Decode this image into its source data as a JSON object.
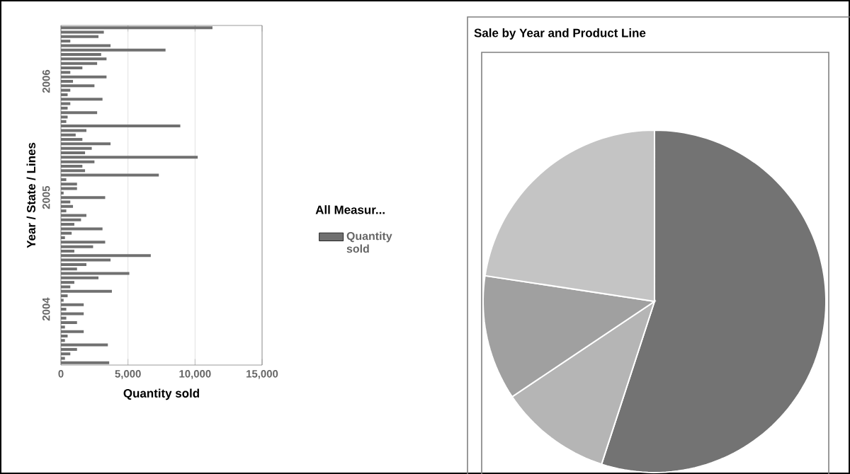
{
  "chart_data": [
    {
      "type": "bar",
      "orientation": "horizontal",
      "xlabel": "Quantity sold",
      "ylabel": "Year / State / Lines",
      "legend_title": "All Measur...",
      "legend": "right",
      "grid": "x",
      "categories": [
        null,
        null,
        null,
        null,
        null,
        null,
        null,
        null,
        null,
        null,
        null,
        null,
        "2006",
        null,
        null,
        null,
        null,
        null,
        null,
        null,
        null,
        null,
        null,
        null,
        null,
        null,
        null,
        null,
        null,
        null,
        null,
        null,
        null,
        null,
        null,
        null,
        null,
        null,
        "2005",
        null,
        null,
        null,
        null,
        null,
        null,
        null,
        null,
        null,
        null,
        null,
        null,
        null,
        null,
        null,
        null,
        null,
        null,
        null,
        null,
        null,
        null,
        null,
        null,
        "2004",
        null,
        null,
        null,
        null,
        null,
        null,
        null,
        null,
        null,
        null,
        null,
        null
      ],
      "series": [
        {
          "name": "Quantity sold",
          "color": "#707070",
          "values": [
            11300,
            3200,
            2800,
            700,
            3700,
            7800,
            3000,
            3400,
            2700,
            1600,
            700,
            3400,
            900,
            2500,
            700,
            500,
            3100,
            700,
            500,
            2700,
            500,
            400,
            8900,
            1900,
            1100,
            1600,
            3700,
            2300,
            1800,
            10200,
            2500,
            1600,
            1800,
            7300,
            400,
            1200,
            1200,
            200,
            3300,
            700,
            900,
            400,
            1900,
            1500,
            1000,
            3100,
            800,
            300,
            3300,
            2400,
            1000,
            6700,
            3700,
            1900,
            1200,
            5100,
            2800,
            1000,
            700,
            3800,
            500,
            200,
            1700,
            400,
            1700,
            400,
            1200,
            300,
            1700,
            500,
            300,
            3500,
            1200,
            700,
            300,
            3600
          ]
        }
      ],
      "xlim": [
        0,
        15000
      ],
      "xticks": [
        0,
        {
          "value": 5000,
          "label": "5,000"
        },
        {
          "value": 10000,
          "label": "10,000"
        },
        {
          "value": 15000,
          "label": "15,000"
        }
      ]
    },
    {
      "type": "pie",
      "title": "Sale by Year and Product Line",
      "categories": [
        null,
        null,
        null,
        null
      ],
      "values": [
        55,
        10.6,
        11.8,
        22.6
      ],
      "colors": [
        "#737373",
        "#b5b5b5",
        "#a0a0a0",
        "#c4c4c4"
      ]
    }
  ]
}
